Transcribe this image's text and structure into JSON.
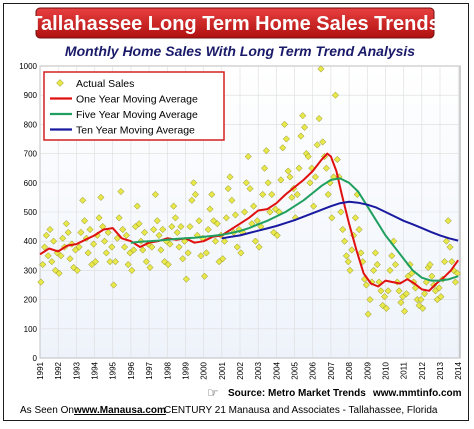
{
  "chart_data": {
    "type": "scatter",
    "title": "Tallahassee Long Term Home Sales Trends",
    "subtitle": "Monthly Home Sales With Long Term Trend Analysis",
    "xlabel": "",
    "ylabel": "",
    "x_tick_labels": [
      "1991",
      "1992",
      "1993",
      "1994",
      "1995",
      "1996",
      "1997",
      "1998",
      "1999",
      "2000",
      "2001",
      "2002",
      "2003",
      "2004",
      "2005",
      "2006",
      "2007",
      "2008",
      "2009",
      "2010",
      "2011",
      "2012",
      "2013",
      "2014"
    ],
    "xlim": [
      1991,
      2014.1
    ],
    "ylim": [
      0,
      1000
    ],
    "y_ticks": [
      0,
      100,
      200,
      300,
      400,
      500,
      600,
      700,
      800,
      900,
      1000
    ],
    "grid": true,
    "legend_position": "top-left",
    "series": [
      {
        "name": "Actual Sales",
        "type": "scatter",
        "color": "#e8e84a",
        "points": [
          [
            1991.05,
            260
          ],
          [
            1991.15,
            320
          ],
          [
            1991.25,
            380
          ],
          [
            1991.35,
            420
          ],
          [
            1991.45,
            350
          ],
          [
            1991.55,
            440
          ],
          [
            1991.65,
            330
          ],
          [
            1991.75,
            400
          ],
          [
            1991.85,
            300
          ],
          [
            1991.95,
            360
          ],
          [
            1992.05,
            290
          ],
          [
            1992.15,
            350
          ],
          [
            1992.25,
            410
          ],
          [
            1992.35,
            380
          ],
          [
            1992.45,
            460
          ],
          [
            1992.55,
            430
          ],
          [
            1992.65,
            340
          ],
          [
            1992.75,
            390
          ],
          [
            1992.85,
            310
          ],
          [
            1992.95,
            370
          ],
          [
            1993.05,
            300
          ],
          [
            1993.15,
            380
          ],
          [
            1993.25,
            430
          ],
          [
            1993.35,
            540
          ],
          [
            1993.45,
            470
          ],
          [
            1993.55,
            410
          ],
          [
            1993.65,
            360
          ],
          [
            1993.75,
            440
          ],
          [
            1993.85,
            320
          ],
          [
            1993.95,
            390
          ],
          [
            1994.05,
            330
          ],
          [
            1994.15,
            420
          ],
          [
            1994.25,
            480
          ],
          [
            1994.35,
            550
          ],
          [
            1994.45,
            450
          ],
          [
            1994.55,
            400
          ],
          [
            1994.65,
            360
          ],
          [
            1994.75,
            430
          ],
          [
            1994.85,
            330
          ],
          [
            1994.95,
            380
          ],
          [
            1995.05,
            250
          ],
          [
            1995.15,
            330
          ],
          [
            1995.25,
            410
          ],
          [
            1995.35,
            480
          ],
          [
            1995.45,
            570
          ],
          [
            1995.55,
            440
          ],
          [
            1995.65,
            380
          ],
          [
            1995.75,
            420
          ],
          [
            1995.85,
            320
          ],
          [
            1995.95,
            360
          ],
          [
            1996.05,
            300
          ],
          [
            1996.15,
            370
          ],
          [
            1996.25,
            450
          ],
          [
            1996.35,
            520
          ],
          [
            1996.45,
            460
          ],
          [
            1996.55,
            400
          ],
          [
            1996.65,
            370
          ],
          [
            1996.75,
            430
          ],
          [
            1996.85,
            330
          ],
          [
            1996.95,
            390
          ],
          [
            1997.05,
            310
          ],
          [
            1997.15,
            380
          ],
          [
            1997.25,
            440
          ],
          [
            1997.35,
            560
          ],
          [
            1997.45,
            470
          ],
          [
            1997.55,
            420
          ],
          [
            1997.65,
            370
          ],
          [
            1997.75,
            440
          ],
          [
            1997.85,
            330
          ],
          [
            1997.95,
            400
          ],
          [
            1998.05,
            320
          ],
          [
            1998.15,
            390
          ],
          [
            1998.25,
            450
          ],
          [
            1998.35,
            520
          ],
          [
            1998.45,
            480
          ],
          [
            1998.55,
            430
          ],
          [
            1998.65,
            380
          ],
          [
            1998.75,
            450
          ],
          [
            1998.85,
            340
          ],
          [
            1998.95,
            400
          ],
          [
            1999.05,
            270
          ],
          [
            1999.15,
            360
          ],
          [
            1999.25,
            450
          ],
          [
            1999.35,
            540
          ],
          [
            1999.45,
            600
          ],
          [
            1999.55,
            560
          ],
          [
            1999.65,
            420
          ],
          [
            1999.75,
            470
          ],
          [
            1999.85,
            350
          ],
          [
            1999.95,
            410
          ],
          [
            2000.05,
            280
          ],
          [
            2000.15,
            360
          ],
          [
            2000.25,
            440
          ],
          [
            2000.35,
            510
          ],
          [
            2000.45,
            560
          ],
          [
            2000.55,
            470
          ],
          [
            2000.65,
            400
          ],
          [
            2000.75,
            460
          ],
          [
            2000.85,
            330
          ],
          [
            2000.95,
            420
          ],
          [
            2001.05,
            340
          ],
          [
            2001.15,
            400
          ],
          [
            2001.25,
            480
          ],
          [
            2001.35,
            580
          ],
          [
            2001.45,
            620
          ],
          [
            2001.55,
            540
          ],
          [
            2001.65,
            430
          ],
          [
            2001.75,
            490
          ],
          [
            2001.85,
            380
          ],
          [
            2001.95,
            440
          ],
          [
            2002.05,
            360
          ],
          [
            2002.15,
            430
          ],
          [
            2002.25,
            500
          ],
          [
            2002.35,
            600
          ],
          [
            2002.45,
            690
          ],
          [
            2002.55,
            580
          ],
          [
            2002.65,
            460
          ],
          [
            2002.75,
            520
          ],
          [
            2002.85,
            400
          ],
          [
            2002.95,
            470
          ],
          [
            2003.05,
            380
          ],
          [
            2003.15,
            450
          ],
          [
            2003.25,
            560
          ],
          [
            2003.35,
            650
          ],
          [
            2003.45,
            710
          ],
          [
            2003.55,
            600
          ],
          [
            2003.65,
            500
          ],
          [
            2003.75,
            560
          ],
          [
            2003.85,
            430
          ],
          [
            2003.95,
            510
          ],
          [
            2004.05,
            420
          ],
          [
            2004.15,
            500
          ],
          [
            2004.25,
            610
          ],
          [
            2004.35,
            720
          ],
          [
            2004.45,
            800
          ],
          [
            2004.55,
            750
          ],
          [
            2004.65,
            640
          ],
          [
            2004.75,
            620
          ],
          [
            2004.85,
            550
          ],
          [
            2004.95,
            580
          ],
          [
            2005.05,
            480
          ],
          [
            2005.15,
            560
          ],
          [
            2005.25,
            650
          ],
          [
            2005.35,
            760
          ],
          [
            2005.45,
            830
          ],
          [
            2005.55,
            790
          ],
          [
            2005.65,
            700
          ],
          [
            2005.75,
            690
          ],
          [
            2005.85,
            600
          ],
          [
            2005.95,
            650
          ],
          [
            2006.05,
            520
          ],
          [
            2006.15,
            620
          ],
          [
            2006.25,
            730
          ],
          [
            2006.35,
            820
          ],
          [
            2006.45,
            990
          ],
          [
            2006.55,
            740
          ],
          [
            2006.65,
            690
          ],
          [
            2006.75,
            650
          ],
          [
            2006.85,
            560
          ],
          [
            2006.95,
            600
          ],
          [
            2007.05,
            480
          ],
          [
            2007.15,
            620
          ],
          [
            2007.25,
            900
          ],
          [
            2007.35,
            680
          ],
          [
            2007.45,
            620
          ],
          [
            2007.55,
            500
          ],
          [
            2007.65,
            440
          ],
          [
            2007.75,
            400
          ],
          [
            2007.85,
            350
          ],
          [
            2007.95,
            330
          ],
          [
            2008.05,
            300
          ],
          [
            2008.15,
            370
          ],
          [
            2008.25,
            420
          ],
          [
            2008.35,
            480
          ],
          [
            2008.45,
            560
          ],
          [
            2008.55,
            440
          ],
          [
            2008.65,
            360
          ],
          [
            2008.75,
            330
          ],
          [
            2008.85,
            270
          ],
          [
            2008.95,
            250
          ],
          [
            2009.05,
            150
          ],
          [
            2009.15,
            200
          ],
          [
            2009.25,
            260
          ],
          [
            2009.35,
            300
          ],
          [
            2009.45,
            360
          ],
          [
            2009.55,
            320
          ],
          [
            2009.65,
            260
          ],
          [
            2009.75,
            230
          ],
          [
            2009.85,
            180
          ],
          [
            2009.95,
            210
          ],
          [
            2010.05,
            170
          ],
          [
            2010.15,
            230
          ],
          [
            2010.25,
            300
          ],
          [
            2010.35,
            350
          ],
          [
            2010.45,
            400
          ],
          [
            2010.55,
            320
          ],
          [
            2010.65,
            260
          ],
          [
            2010.75,
            230
          ],
          [
            2010.85,
            190
          ],
          [
            2010.95,
            210
          ],
          [
            2011.05,
            160
          ],
          [
            2011.15,
            220
          ],
          [
            2011.25,
            280
          ],
          [
            2011.35,
            320
          ],
          [
            2011.45,
            290
          ],
          [
            2011.55,
            260
          ],
          [
            2011.65,
            240
          ],
          [
            2011.75,
            200
          ],
          [
            2011.85,
            180
          ],
          [
            2011.95,
            200
          ],
          [
            2012.05,
            170
          ],
          [
            2012.15,
            220
          ],
          [
            2012.25,
            260
          ],
          [
            2012.35,
            310
          ],
          [
            2012.45,
            320
          ],
          [
            2012.55,
            280
          ],
          [
            2012.65,
            250
          ],
          [
            2012.75,
            230
          ],
          [
            2012.85,
            200
          ],
          [
            2012.95,
            240
          ],
          [
            2013.05,
            210
          ],
          [
            2013.15,
            270
          ],
          [
            2013.25,
            330
          ],
          [
            2013.35,
            400
          ],
          [
            2013.45,
            470
          ],
          [
            2013.55,
            380
          ],
          [
            2013.65,
            330
          ],
          [
            2013.75,
            300
          ],
          [
            2013.85,
            260
          ],
          [
            2013.95,
            290
          ]
        ]
      },
      {
        "name": "One Year Moving Average",
        "type": "line",
        "color": "#e01010",
        "x": [
          1991.0,
          1991.5,
          1992.0,
          1992.5,
          1993.0,
          1993.5,
          1994.0,
          1994.5,
          1995.0,
          1995.5,
          1996.0,
          1996.5,
          1997.0,
          1997.5,
          1998.0,
          1998.5,
          1999.0,
          1999.5,
          2000.0,
          2000.5,
          2001.0,
          2001.5,
          2002.0,
          2002.5,
          2003.0,
          2003.5,
          2004.0,
          2004.5,
          2005.0,
          2005.5,
          2006.0,
          2006.5,
          2006.8,
          2007.0,
          2007.3,
          2007.6,
          2008.0,
          2008.4,
          2008.8,
          2009.2,
          2009.6,
          2010.0,
          2010.4,
          2010.8,
          2011.2,
          2011.6,
          2012.0,
          2012.4,
          2012.8,
          2013.2,
          2013.6,
          2014.0
        ],
        "y": [
          355,
          375,
          365,
          385,
          390,
          405,
          420,
          440,
          445,
          410,
          400,
          380,
          395,
          400,
          410,
          405,
          410,
          395,
          400,
          415,
          420,
          440,
          460,
          480,
          505,
          510,
          530,
          560,
          585,
          610,
          640,
          680,
          700,
          690,
          640,
          560,
          460,
          370,
          290,
          255,
          245,
          265,
          260,
          255,
          270,
          255,
          235,
          230,
          255,
          275,
          300,
          335
        ]
      },
      {
        "name": "Five Year Moving Average",
        "type": "line",
        "color": "#20a060",
        "x": [
          1996.0,
          1996.5,
          1997.0,
          1997.5,
          1998.0,
          1998.5,
          1999.0,
          1999.5,
          2000.0,
          2000.5,
          2001.0,
          2001.5,
          2002.0,
          2002.5,
          2003.0,
          2003.5,
          2004.0,
          2004.5,
          2005.0,
          2005.5,
          2006.0,
          2006.5,
          2007.0,
          2007.5,
          2008.0,
          2008.5,
          2009.0,
          2009.5,
          2010.0,
          2010.5,
          2011.0,
          2011.5,
          2012.0,
          2012.5,
          2013.0,
          2013.5,
          2014.0
        ],
        "y": [
          395,
          398,
          400,
          402,
          405,
          408,
          410,
          412,
          415,
          418,
          422,
          428,
          435,
          445,
          458,
          470,
          485,
          500,
          520,
          540,
          565,
          590,
          610,
          615,
          600,
          570,
          520,
          470,
          420,
          380,
          340,
          300,
          275,
          265,
          265,
          270,
          280
        ]
      },
      {
        "name": "Ten Year Moving Average",
        "type": "line",
        "color": "#1a1aa0",
        "x": [
          2001.0,
          2001.5,
          2002.0,
          2002.5,
          2003.0,
          2003.5,
          2004.0,
          2004.5,
          2005.0,
          2005.5,
          2006.0,
          2006.5,
          2007.0,
          2007.5,
          2008.0,
          2008.5,
          2009.0,
          2009.5,
          2010.0,
          2010.5,
          2011.0,
          2011.5,
          2012.0,
          2012.5,
          2013.0,
          2013.5,
          2014.0
        ],
        "y": [
          410,
          415,
          420,
          428,
          436,
          444,
          452,
          462,
          472,
          484,
          496,
          508,
          520,
          530,
          535,
          532,
          525,
          515,
          500,
          485,
          470,
          458,
          445,
          432,
          420,
          410,
          402
        ]
      }
    ]
  },
  "source_label": "Source:  Metro Market Trends",
  "source_url": "www.mmtinfo.com",
  "footer_prefix": "As Seen On",
  "footer_site": "www.Manausa.com",
  "footer_suffix": "CENTURY 21 Manausa and Associates - Tallahassee, Florida",
  "colors": {
    "title_bar": "#d41a1a",
    "legend_border": "#d42020",
    "plot_bg": "#ffffff",
    "grid": "#dcdcdc"
  },
  "icons": {
    "source": "hand-pointer-icon"
  }
}
